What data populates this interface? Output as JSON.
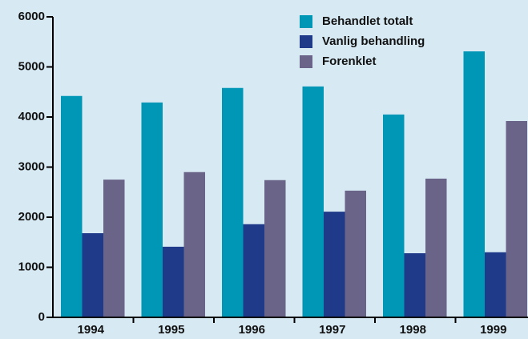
{
  "chart_data": {
    "type": "bar",
    "categories": [
      "1994",
      "1995",
      "1996",
      "1997",
      "1998",
      "1999"
    ],
    "series": [
      {
        "name": "Behandlet totalt",
        "color": "#0096b6",
        "values": [
          4420,
          4290,
          4580,
          4610,
          4050,
          5310
        ]
      },
      {
        "name": "Vanlig behandling",
        "color": "#1f3a89",
        "values": [
          1680,
          1410,
          1860,
          2110,
          1280,
          1300
        ]
      },
      {
        "name": "Forenklet",
        "color": "#6a6489",
        "values": [
          2750,
          2900,
          2740,
          2530,
          2770,
          3920
        ]
      }
    ],
    "ylim": [
      0,
      6000
    ],
    "yticks": [
      0,
      1000,
      2000,
      3000,
      4000,
      5000,
      6000
    ],
    "grid": false,
    "legend": "top-right"
  }
}
